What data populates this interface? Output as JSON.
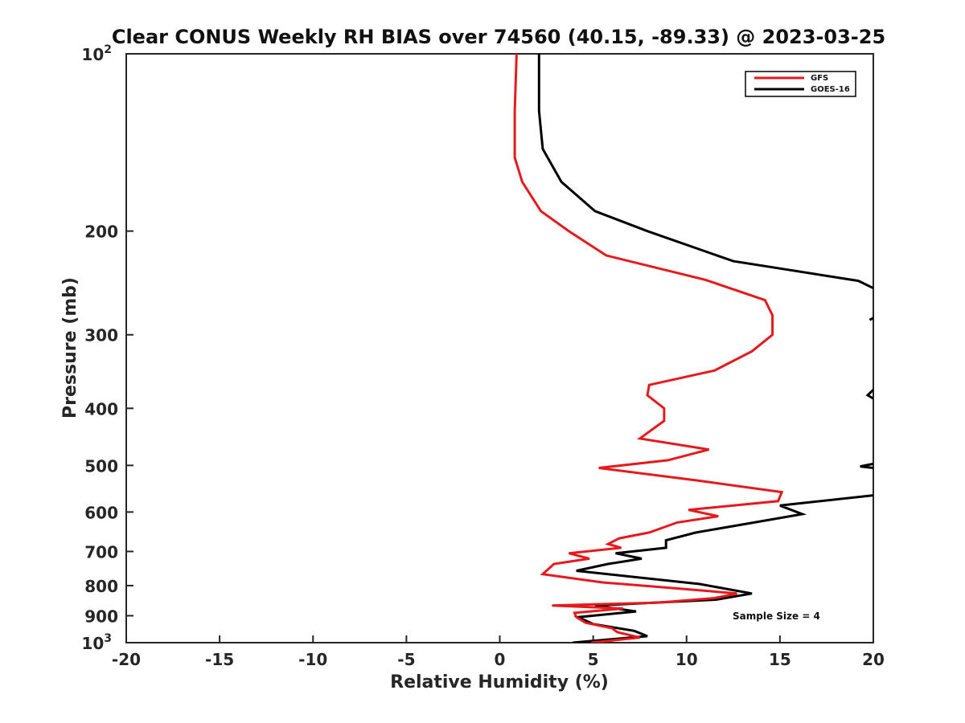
{
  "chart_data": {
    "type": "line",
    "title": "Clear CONUS Weekly RH BIAS over 74560 (40.15, -89.33) @ 2023-03-25",
    "xlabel": "Relative Humidity (%)",
    "ylabel": "Pressure (mb)",
    "xlim": [
      -20,
      20
    ],
    "ylim": [
      100,
      1000
    ],
    "y_scale": "log",
    "y_reversed": true,
    "grid": false,
    "legend_position": "top-right",
    "x_ticks": [
      "-20",
      "-15",
      "-10",
      "-5",
      "0",
      "5",
      "10",
      "15",
      "20"
    ],
    "y_ticks": [
      {
        "base": "10",
        "exp": "2"
      },
      {
        "base": "200",
        "exp": ""
      },
      {
        "base": "300",
        "exp": ""
      },
      {
        "base": "400",
        "exp": ""
      },
      {
        "base": "500",
        "exp": ""
      },
      {
        "base": "600",
        "exp": ""
      },
      {
        "base": "700",
        "exp": ""
      },
      {
        "base": "800",
        "exp": ""
      },
      {
        "base": "900",
        "exp": ""
      },
      {
        "base": "10",
        "exp": "3"
      }
    ],
    "annotation": "Sample Size = 4",
    "series": [
      {
        "name": "GFS",
        "color": "#e41a1c",
        "points": [
          [
            0.9,
            100
          ],
          [
            0.8,
            125
          ],
          [
            0.8,
            150
          ],
          [
            1.2,
            165
          ],
          [
            2.2,
            185
          ],
          [
            3.7,
            200
          ],
          [
            5.7,
            220
          ],
          [
            11.0,
            242
          ],
          [
            14.2,
            262
          ],
          [
            14.6,
            278
          ],
          [
            14.6,
            300
          ],
          [
            13.5,
            320
          ],
          [
            11.5,
            345
          ],
          [
            8.0,
            365
          ],
          [
            7.9,
            380
          ],
          [
            8.8,
            400
          ],
          [
            8.8,
            420
          ],
          [
            7.5,
            450
          ],
          [
            11.2,
            470
          ],
          [
            9.0,
            490
          ],
          [
            5.3,
            505
          ],
          [
            10.5,
            530
          ],
          [
            15.1,
            555
          ],
          [
            14.9,
            575
          ],
          [
            10.1,
            595
          ],
          [
            11.7,
            610
          ],
          [
            9.5,
            625
          ],
          [
            8.0,
            650
          ],
          [
            6.4,
            665
          ],
          [
            5.8,
            680
          ],
          [
            6.5,
            690
          ],
          [
            3.7,
            705
          ],
          [
            4.8,
            720
          ],
          [
            2.9,
            735
          ],
          [
            2.3,
            765
          ],
          [
            5.5,
            790
          ],
          [
            9.7,
            810
          ],
          [
            12.7,
            825
          ],
          [
            11.5,
            840
          ],
          [
            8.5,
            855
          ],
          [
            2.8,
            865
          ],
          [
            6.6,
            875
          ],
          [
            4.0,
            890
          ],
          [
            4.1,
            905
          ],
          [
            4.6,
            925
          ],
          [
            6.0,
            945
          ],
          [
            6.3,
            960
          ],
          [
            7.5,
            980
          ],
          [
            4.9,
            1000
          ]
        ]
      },
      {
        "name": "GOES-16",
        "color": "#000000",
        "points": [
          [
            2.1,
            100
          ],
          [
            2.1,
            125
          ],
          [
            2.3,
            145
          ],
          [
            3.3,
            165
          ],
          [
            5.1,
            185
          ],
          [
            7.9,
            200
          ],
          [
            12.5,
            225
          ],
          [
            19.2,
            243
          ],
          [
            20.0,
            250
          ]
        ],
        "extra_segments": [
          [
            [
              19.8,
              283
            ],
            [
              20.0,
              281
            ]
          ],
          [
            [
              20.0,
              385
            ],
            [
              19.7,
              380
            ],
            [
              20.0,
              372
            ]
          ],
          [
            [
              20.0,
              497
            ],
            [
              19.3,
              502
            ],
            [
              20.0,
              505
            ]
          ],
          [
            [
              20.0,
              562
            ],
            [
              15.0,
              585
            ],
            [
              16.2,
              605
            ],
            [
              13.0,
              630
            ],
            [
              10.5,
              650
            ],
            [
              8.9,
              670
            ],
            [
              8.9,
              690
            ],
            [
              6.2,
              705
            ],
            [
              7.6,
              720
            ],
            [
              5.8,
              735
            ],
            [
              4.1,
              755
            ],
            [
              10.7,
              795
            ],
            [
              13.5,
              825
            ],
            [
              11.6,
              845
            ],
            [
              5.1,
              865
            ],
            [
              7.3,
              885
            ],
            [
              4.2,
              905
            ],
            [
              5.0,
              930
            ],
            [
              7.2,
              955
            ],
            [
              7.9,
              975
            ],
            [
              3.9,
              1000
            ]
          ]
        ]
      }
    ]
  }
}
